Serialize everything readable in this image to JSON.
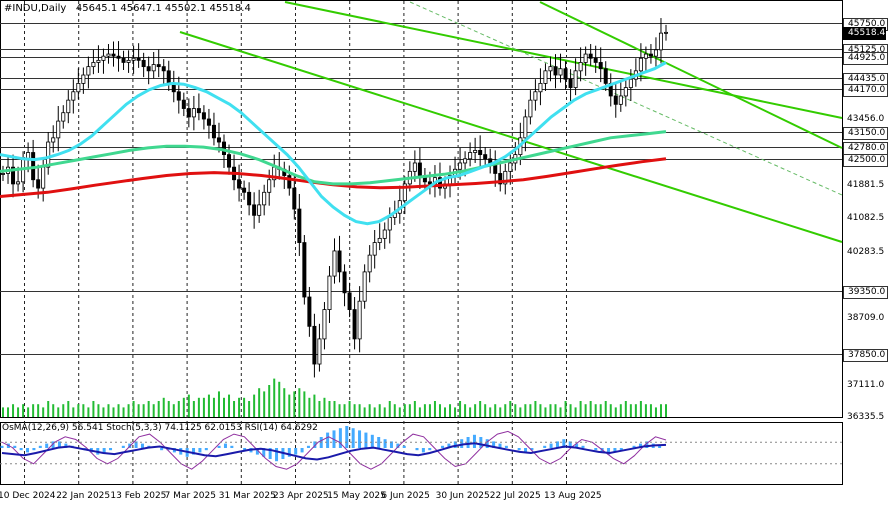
{
  "header": {
    "symbol": "#INDU,Daily",
    "ohlc": "45645.1 45647.1 45502.1 45518.4"
  },
  "indicator_header": "OsMA(12,26,9) 56.541  Stoch(5,3,3) 74.1125 62.0153  RSI(14) 64.6292",
  "colors": {
    "ema_fast": "#40e0f0",
    "ema_mid": "#40d890",
    "ema_slow": "#e01010",
    "channel": "#33cc00",
    "candle": "#000000",
    "volume": "#22bb33",
    "osma": "#44aaff",
    "grid": "#222222"
  },
  "chart_data": {
    "type": "candlestick",
    "title": "#INDU,Daily",
    "ylim": [
      36335.5,
      46100
    ],
    "price_axis_ticks": [
      "45750.0",
      "45518.4",
      "45125.0",
      "44925.0",
      "44435.0",
      "44170.0",
      "43456.0",
      "43150.0",
      "42780.0",
      "42500.0",
      "41881.5",
      "41082.5",
      "40283.5",
      "39350.0",
      "38709.0",
      "37850.0",
      "37111.0",
      "36335.5"
    ],
    "levels": [
      45750,
      45125,
      44925,
      44435,
      44170,
      43150,
      42780,
      42500,
      39350,
      37850
    ],
    "current_price": 45518.4,
    "x_labels": [
      "10 Dec 2024",
      "22 Jan 2025",
      "13 Feb 2025",
      "7 Mar 2025",
      "31 Mar 2025",
      "23 Apr 2025",
      "15 May 2025",
      "6 Jun 2025",
      "30 Jun 2025",
      "22 Jul 2025",
      "13 Aug 2025"
    ],
    "close": [
      42150,
      42300,
      41900,
      41950,
      42500,
      42650,
      42000,
      41800,
      42300,
      42900,
      43000,
      43400,
      43600,
      43900,
      44100,
      44300,
      44500,
      44700,
      44800,
      44850,
      44950,
      45000,
      44950,
      44900,
      44800,
      44850,
      44900,
      44850,
      44700,
      44600,
      44750,
      44700,
      44600,
      44300,
      44100,
      43900,
      43700,
      43500,
      43700,
      43600,
      43450,
      43300,
      43000,
      42900,
      42600,
      42300,
      42000,
      41800,
      41700,
      41400,
      41150,
      41400,
      41700,
      42000,
      42300,
      42250,
      42100,
      41800,
      41300,
      40500,
      39200,
      38500,
      37600,
      38200,
      38900,
      39700,
      40300,
      39800,
      39300,
      38900,
      38200,
      39100,
      39800,
      40200,
      40500,
      40600,
      40800,
      41100,
      41200,
      41500,
      41900,
      42200,
      42400,
      42100,
      41950,
      41900,
      42050,
      41800,
      41900,
      42100,
      42250,
      42400,
      42500,
      42650,
      42700,
      42600,
      42500,
      42400,
      42150,
      41900,
      42200,
      42400,
      42600,
      43000,
      43500,
      43900,
      44100,
      44300,
      44600,
      44700,
      44500,
      44650,
      44400,
      44200,
      44600,
      44800,
      45000,
      44900,
      44800,
      44650,
      44300,
      44000,
      43800,
      44000,
      44200,
      44400,
      44600,
      44900,
      45000,
      44950,
      45100,
      45500,
      45518.4
    ],
    "ema_fast": [
      42600,
      42550,
      42500,
      42480,
      42520,
      42600,
      42700,
      42850,
      43050,
      43300,
      43550,
      43800,
      44000,
      44150,
      44250,
      44300,
      44280,
      44200,
      44100,
      43950,
      43800,
      43600,
      43350,
      43100,
      42850,
      42600,
      42300,
      41950,
      41600,
      41350,
      41150,
      41000,
      40950,
      41000,
      41150,
      41350,
      41550,
      41750,
      41950,
      42050,
      42100,
      42200,
      42300,
      42400,
      42550,
      42750,
      43000,
      43250,
      43500,
      43700,
      43900,
      44050,
      44150,
      44250,
      44350,
      44450,
      44550,
      44650,
      44800
    ],
    "ema_mid": [
      42200,
      42250,
      42300,
      42380,
      42460,
      42540,
      42620,
      42700,
      42760,
      42800,
      42800,
      42780,
      42720,
      42620,
      42480,
      42300,
      42100,
      41950,
      41900,
      41900,
      41930,
      41980,
      42030,
      42080,
      42130,
      42200,
      42300,
      42400,
      42500,
      42600,
      42700,
      42800,
      42900,
      43000,
      43050,
      43100,
      43150
    ],
    "ema_slow": [
      41600,
      41650,
      41700,
      41780,
      41870,
      41950,
      42030,
      42100,
      42150,
      42170,
      42150,
      42100,
      42030,
      41950,
      41880,
      41830,
      41810,
      41820,
      41850,
      41880,
      41910,
      41950,
      42000,
      42080,
      42170,
      42260,
      42350,
      42430,
      42500
    ],
    "volume": [
      3,
      3,
      4,
      3,
      4,
      3,
      4,
      4,
      3,
      5,
      4,
      3,
      4,
      5,
      3,
      4,
      4,
      3,
      5,
      4,
      3,
      4,
      3,
      4,
      3,
      4,
      5,
      4,
      4,
      5,
      4,
      5,
      6,
      5,
      4,
      5,
      6,
      7,
      5,
      6,
      6,
      7,
      6,
      8,
      6,
      7,
      5,
      6,
      6,
      5,
      7,
      9,
      8,
      10,
      12,
      11,
      9,
      7,
      8,
      9,
      8,
      6,
      7,
      5,
      6,
      5,
      5,
      4,
      4,
      5,
      4,
      4,
      3,
      4,
      3,
      4,
      3,
      5,
      4,
      3,
      4,
      4,
      5,
      3,
      4,
      4,
      5,
      4,
      3,
      4,
      3,
      5,
      4,
      3,
      4,
      5,
      4,
      3,
      4,
      3,
      4,
      5,
      4,
      3,
      4,
      4,
      5,
      4,
      3,
      4,
      4,
      3,
      5,
      4,
      3,
      5,
      4,
      5,
      4,
      4,
      5,
      4,
      3,
      4,
      5,
      4,
      4,
      5,
      4,
      4,
      3,
      4,
      4
    ],
    "osma": [
      1,
      2,
      1,
      -1,
      -2,
      -1,
      1,
      2,
      3,
      3,
      2,
      1,
      0,
      -1,
      -2,
      -3,
      -2,
      -1,
      0,
      1,
      2,
      3,
      2,
      1,
      0,
      -1,
      -1,
      -2,
      -3,
      -4,
      -3,
      -2,
      -1,
      0,
      1,
      2,
      1,
      0,
      -1,
      -2,
      -3,
      -4,
      -5,
      -6,
      -5,
      -4,
      -3,
      -2,
      1,
      3,
      5,
      7,
      8,
      9,
      10,
      9,
      8,
      7,
      6,
      5,
      4,
      3,
      2,
      1,
      0,
      -1,
      -2,
      -1,
      0,
      1,
      2,
      3,
      4,
      5,
      6,
      5,
      4,
      3,
      2,
      1,
      0,
      -1,
      -2,
      -1,
      0,
      1,
      2,
      3,
      4,
      3,
      2,
      1,
      0,
      -1,
      -2,
      -3,
      -2,
      -1,
      0,
      1,
      2,
      3,
      2,
      1,
      0
    ],
    "stoch": [
      70,
      60,
      40,
      30,
      50,
      70,
      80,
      75,
      60,
      40,
      30,
      40,
      60,
      80,
      85,
      70,
      50,
      30,
      20,
      35,
      55,
      75,
      85,
      80,
      60,
      40,
      25,
      20,
      30,
      50,
      70,
      80,
      70,
      50,
      30,
      20,
      30,
      50,
      70,
      85,
      80,
      60,
      40,
      25,
      30,
      50,
      70,
      85,
      90,
      80,
      60,
      40,
      30,
      40,
      60,
      75,
      70,
      55,
      40,
      30,
      45,
      65,
      80,
      74
    ],
    "rsi": [
      50,
      48,
      46,
      50,
      55,
      60,
      62,
      58,
      54,
      50,
      48,
      52,
      56,
      60,
      62,
      58,
      54,
      50,
      46,
      44,
      48,
      52,
      56,
      58,
      55,
      50,
      45,
      40,
      38,
      42,
      48,
      54,
      58,
      60,
      56,
      52,
      48,
      46,
      50,
      56,
      62,
      66,
      68,
      64,
      60,
      56,
      52,
      50,
      54,
      58,
      62,
      60,
      56,
      52,
      50,
      54,
      58,
      62,
      64,
      65
    ]
  }
}
